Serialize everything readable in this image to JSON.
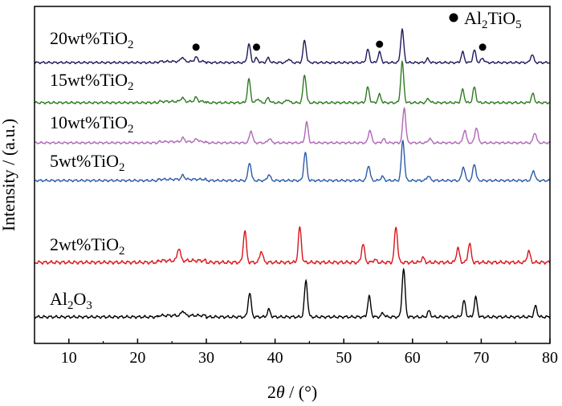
{
  "chart_data": {
    "type": "line",
    "xlabel_parts": {
      "pre": "2",
      "italic": "θ",
      "post": " / (°)"
    },
    "ylabel": "Intensity / (a.u.)",
    "xlim": [
      5,
      80
    ],
    "xticks": [
      "10",
      "20",
      "30",
      "40",
      "50",
      "60",
      "70",
      "80"
    ],
    "xtick_values": [
      10,
      20,
      30,
      40,
      50,
      60,
      70,
      80
    ],
    "legend": {
      "marker": "filled-circle",
      "label_parts": [
        "Al",
        "2",
        "TiO",
        "5"
      ],
      "placement": "top-right"
    },
    "series": [
      {
        "label_parts": [
          "20wt%TiO",
          "2"
        ],
        "color": "#1f1a5a",
        "peaks": [
          [
            26.5,
            0.12
          ],
          [
            28.5,
            0.12
          ],
          [
            36.2,
            0.5
          ],
          [
            37.3,
            0.12
          ],
          [
            39.0,
            0.12
          ],
          [
            42.0,
            0.1
          ],
          [
            44.3,
            0.6
          ],
          [
            53.5,
            0.35
          ],
          [
            55.2,
            0.28
          ],
          [
            58.5,
            0.9
          ],
          [
            62.2,
            0.1
          ],
          [
            67.3,
            0.28
          ],
          [
            69.0,
            0.33
          ],
          [
            70.2,
            0.12
          ],
          [
            77.4,
            0.22
          ]
        ],
        "markers_x": [
          28.5,
          37.3,
          55.2,
          70.2
        ]
      },
      {
        "label_parts": [
          "15wt%TiO",
          "2"
        ],
        "color": "#2f7a22",
        "peaks": [
          [
            26.5,
            0.1
          ],
          [
            28.5,
            0.1
          ],
          [
            36.2,
            0.58
          ],
          [
            37.5,
            0.1
          ],
          [
            39.0,
            0.12
          ],
          [
            41.8,
            0.08
          ],
          [
            44.3,
            0.7
          ],
          [
            53.5,
            0.38
          ],
          [
            55.2,
            0.2
          ],
          [
            58.5,
            1.0
          ],
          [
            62.3,
            0.1
          ],
          [
            67.3,
            0.32
          ],
          [
            69.0,
            0.38
          ],
          [
            77.5,
            0.22
          ]
        ]
      },
      {
        "label_parts": [
          "10wt%TiO",
          "2"
        ],
        "color": "#b066b8",
        "peaks": [
          [
            26.6,
            0.1
          ],
          [
            28.6,
            0.08
          ],
          [
            36.5,
            0.33
          ],
          [
            39.2,
            0.12
          ],
          [
            44.6,
            0.55
          ],
          [
            53.8,
            0.35
          ],
          [
            55.8,
            0.1
          ],
          [
            58.8,
            0.95
          ],
          [
            62.5,
            0.12
          ],
          [
            67.6,
            0.35
          ],
          [
            69.3,
            0.42
          ],
          [
            77.8,
            0.28
          ]
        ]
      },
      {
        "label_parts": [
          "5wt%TiO",
          "2"
        ],
        "color": "#2a5ca8",
        "peaks": [
          [
            26.6,
            0.1
          ],
          [
            36.3,
            0.45
          ],
          [
            39.1,
            0.15
          ],
          [
            44.4,
            0.7
          ],
          [
            53.6,
            0.38
          ],
          [
            55.6,
            0.1
          ],
          [
            58.6,
            1.0
          ],
          [
            62.3,
            0.12
          ],
          [
            67.4,
            0.35
          ],
          [
            69.0,
            0.42
          ],
          [
            77.6,
            0.25
          ]
        ]
      },
      {
        "label_parts": [
          "2wt%TiO",
          "2"
        ],
        "color": "#d9141a",
        "peaks": [
          [
            26.0,
            0.22
          ],
          [
            35.6,
            0.55
          ],
          [
            38.0,
            0.2
          ],
          [
            43.6,
            0.6
          ],
          [
            52.8,
            0.32
          ],
          [
            54.5,
            0.05
          ],
          [
            57.6,
            0.62
          ],
          [
            61.5,
            0.08
          ],
          [
            66.6,
            0.25
          ],
          [
            68.3,
            0.33
          ],
          [
            76.9,
            0.2
          ]
        ]
      },
      {
        "label_parts": [
          "Al",
          "2",
          "O",
          "3"
        ],
        "color": "#000000",
        "peaks": [
          [
            26.6,
            0.1
          ],
          [
            36.3,
            0.5
          ],
          [
            39.1,
            0.15
          ],
          [
            44.5,
            0.75
          ],
          [
            53.7,
            0.42
          ],
          [
            55.7,
            0.08
          ],
          [
            58.7,
            1.0
          ],
          [
            62.4,
            0.12
          ],
          [
            67.5,
            0.33
          ],
          [
            69.2,
            0.4
          ],
          [
            77.9,
            0.22
          ]
        ]
      }
    ]
  }
}
